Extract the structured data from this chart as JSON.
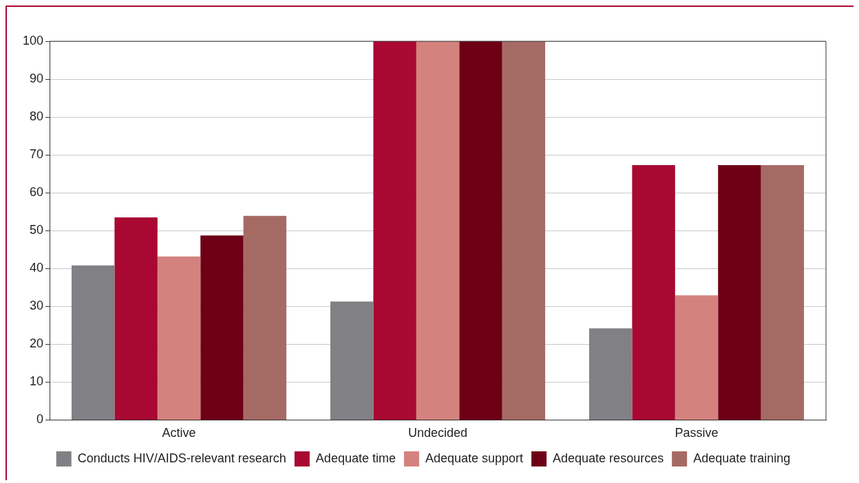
{
  "chart_data": {
    "type": "bar",
    "categories": [
      "Active",
      "Undecided",
      "Passive"
    ],
    "series": [
      {
        "name": "Conducts HIV/AIDS-relevant research",
        "color": "#808085",
        "values": [
          40.8,
          31.3,
          24.2
        ]
      },
      {
        "name": "Adequate time",
        "color": "#a80832",
        "values": [
          53.5,
          100,
          67.3
        ]
      },
      {
        "name": "Adequate support",
        "color": "#d4827e",
        "values": [
          43.2,
          100,
          32.9
        ]
      },
      {
        "name": "Adequate resources",
        "color": "#6e0016",
        "values": [
          48.7,
          100,
          67.3
        ]
      },
      {
        "name": "Adequate training",
        "color": "#a66a64",
        "values": [
          53.9,
          100,
          67.3
        ]
      }
    ],
    "ylim": [
      0,
      100
    ],
    "yticks": [
      0,
      10,
      20,
      30,
      40,
      50,
      60,
      70,
      80,
      90,
      100
    ],
    "grid": "y",
    "legend": "bottom"
  }
}
